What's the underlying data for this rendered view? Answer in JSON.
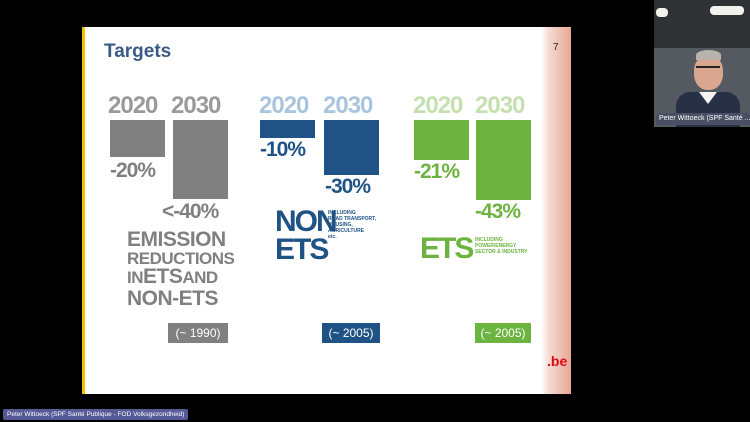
{
  "slide": {
    "title": "Targets",
    "page_number": "7",
    "logo": {
      "text": ".be",
      "dot_color": "#e30613"
    }
  },
  "groups": [
    {
      "id": "total",
      "color": "#808080",
      "year_color": "#9a9a9a",
      "year_2020": "2020",
      "year_2030": "2030",
      "value_2020": "-20%",
      "value_2030": "<-40%",
      "label_lines": [
        "EMISSION",
        "REDUCTIONS",
        "IN",
        "ETS",
        "AND",
        "NON-ETS"
      ],
      "baseline": "(~ 1990)"
    },
    {
      "id": "non-ets",
      "color": "#1f5385",
      "year_color": "#a9c5de",
      "year_2020": "2020",
      "year_2030": "2030",
      "value_2020": "-10%",
      "value_2030": "-30%",
      "label_big_1": "NON",
      "label_big_2": "ETS",
      "label_small_1": "INCLUDING",
      "label_small_2": "ROAD TRANSPORT,",
      "label_small_3": "HOUSING,",
      "label_small_4": "AGRICULTURE",
      "label_small_5": "etc.",
      "baseline": "(~ 2005)"
    },
    {
      "id": "ets",
      "color": "#6cb33f",
      "year_color": "#c5e0b0",
      "year_2020": "2020",
      "year_2030": "2030",
      "value_2020": "-21%",
      "value_2030": "-43%",
      "label_big": "ETS",
      "label_small_1": "INCLUDING",
      "label_small_2": "POWER/ENERGY",
      "label_small_3": "SECTOR & INDUSTRY",
      "baseline": "(~ 2005)"
    }
  ],
  "video": {
    "participant_name": "Peter Wittoeck (SPF Santé ..."
  },
  "presenter": {
    "label": "Peter Wittoeck (SPF Santé Publique - FOD Volksgezondheid)"
  }
}
